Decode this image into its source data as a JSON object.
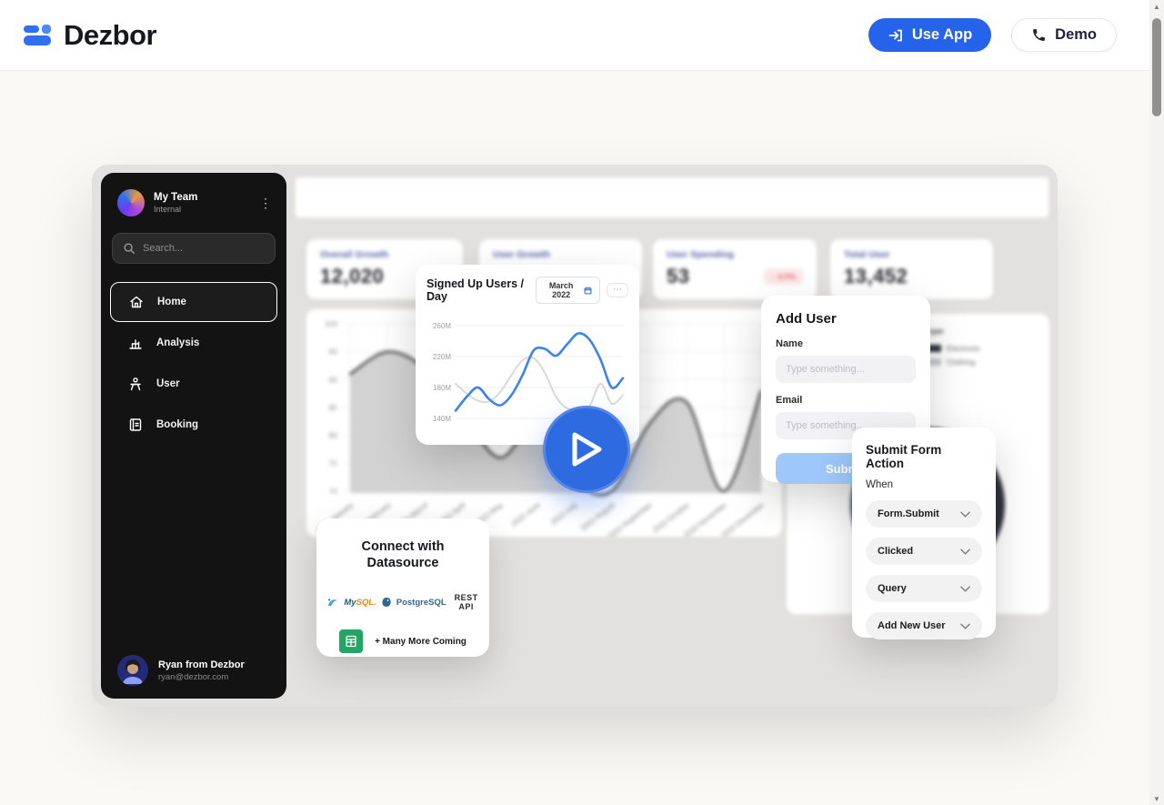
{
  "header": {
    "brand": "Dezbor",
    "use_app": "Use App",
    "demo": "Demo"
  },
  "icons": {
    "kebab": "⋮",
    "more": "⋯",
    "arrow_down": "↓",
    "scroll_up": "▲",
    "scroll_down": "▼"
  },
  "sidebar": {
    "team": {
      "name": "My Team",
      "type": "Internal"
    },
    "search_placeholder": "Search...",
    "nav": [
      {
        "label": "Home",
        "active": true
      },
      {
        "label": "Analysis",
        "active": false
      },
      {
        "label": "User",
        "active": false
      },
      {
        "label": "Booking",
        "active": false
      }
    ],
    "profile": {
      "name": "Ryan from Dezbor",
      "email": "ryan@dezbor.com"
    }
  },
  "stats": [
    {
      "label": "Overall Growth",
      "value": "12,020"
    },
    {
      "label": "User Growth",
      "value": ""
    },
    {
      "label": "User Spending",
      "value": "53",
      "badge": "0.5%"
    },
    {
      "label": "Total User",
      "value": "13,452"
    }
  ],
  "popup": {
    "title": "Signed Up Users / Day",
    "period": "March 2022"
  },
  "type_card": {
    "title": "Type",
    "legend": [
      "Electronic",
      "Clothing"
    ]
  },
  "datasource": {
    "title_line1": "Connect with",
    "title_line2": "Datasource",
    "mysql_prefix": "My",
    "mysql_suffix": "SQL.",
    "postgresql": "PostgreSQL",
    "rest_api": "REST API",
    "more": "+ Many More Coming"
  },
  "add_user": {
    "title": "Add User",
    "name_label": "Name",
    "email_label": "Email",
    "input_placeholder": "Type something...",
    "submit": "Submit"
  },
  "form_action": {
    "title": "Submit Form Action",
    "when": "When",
    "options": [
      "Form.Submit",
      "Clicked",
      "Query",
      "Add New User"
    ]
  },
  "chart_data": [
    {
      "id": "signed-up-users",
      "type": "line",
      "title": "Signed Up Users / Day",
      "period": "March 2022",
      "y_ticks": [
        "260M",
        "220M",
        "180M",
        "140M"
      ],
      "y_range": [
        140,
        260
      ],
      "series": [
        {
          "name": "previous",
          "color": "#d9d9d9",
          "values": [
            185,
            172,
            163,
            162,
            174,
            196,
            215,
            218,
            199,
            168,
            153,
            152,
            156,
            185,
            159,
            170
          ]
        },
        {
          "name": "current",
          "color": "#3b82f6",
          "values": [
            150,
            168,
            180,
            165,
            157,
            170,
            196,
            228,
            230,
            221,
            236,
            250,
            242,
            216,
            180,
            192
          ]
        }
      ],
      "legend_position": "none",
      "grid": true
    },
    {
      "id": "monthly-trend",
      "type": "area",
      "x_labels": [
        "2022-January",
        "2022-February",
        "2022-March",
        "2022-April",
        "2022-May",
        "2022-June",
        "2022-July",
        "2022-August",
        "2022-September",
        "2022-October",
        "2022-November",
        "2022-December"
      ],
      "y_ticks": [
        100,
        95,
        90,
        85,
        80,
        75,
        70
      ],
      "ylim": [
        70,
        100
      ],
      "values": [
        91,
        95,
        92,
        84,
        76,
        82,
        72,
        70,
        82,
        86,
        70,
        88
      ],
      "line_color": "#3d3d3d",
      "fill_color": "#cdcdcd",
      "grid": true
    },
    {
      "id": "category-share",
      "type": "pie",
      "title": "Type",
      "labels": [
        "Electronic",
        "Clothing"
      ],
      "values": [
        62,
        38
      ],
      "colors": [
        "#2e323e",
        "#4d5261"
      ]
    }
  ]
}
